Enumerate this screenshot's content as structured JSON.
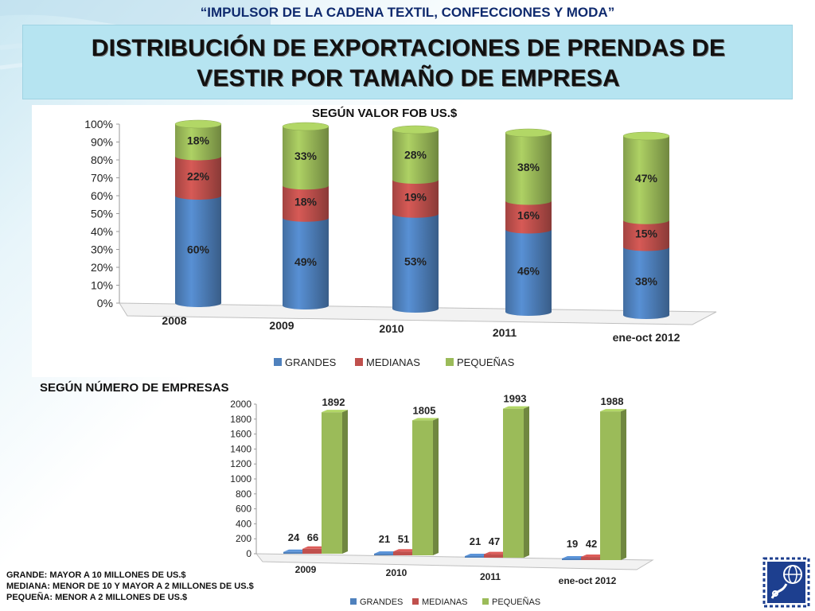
{
  "header": {
    "subtitle": "“IMPULSOR DE LA CADENA TEXTIL, CONFECCIONES Y MODA”",
    "title_line1": "DISTRIBUCIÓN DE EXPORTACIONES DE PRENDAS DE",
    "title_line2": "VESTIR POR TAMAÑO DE EMPRESA"
  },
  "colors": {
    "grandes": "#4f81bd",
    "medianas": "#c0504d",
    "pequenas": "#9bbb59"
  },
  "chart_data": [
    {
      "type": "bar",
      "stacked": true,
      "three_d": true,
      "title": "SEGÚN VALOR FOB US.$",
      "categories": [
        "2008",
        "2009",
        "2010",
        "2011",
        "ene-oct 2012"
      ],
      "series": [
        {
          "name": "GRANDES",
          "values": [
            60,
            49,
            53,
            46,
            38
          ],
          "labels": [
            "60%",
            "49%",
            "53%",
            "46%",
            "38%"
          ]
        },
        {
          "name": "MEDIANAS",
          "values": [
            22,
            18,
            19,
            16,
            15
          ],
          "labels": [
            "22%",
            "18%",
            "19%",
            "16%",
            "15%"
          ]
        },
        {
          "name": "PEQUEÑAS",
          "values": [
            18,
            33,
            28,
            38,
            47
          ],
          "labels": [
            "18%",
            "33%",
            "28%",
            "38%",
            "47%"
          ]
        }
      ],
      "yticks": [
        "0%",
        "10%",
        "20%",
        "30%",
        "40%",
        "50%",
        "60%",
        "70%",
        "80%",
        "90%",
        "100%"
      ],
      "ylim": [
        0,
        100
      ],
      "legend_position": "bottom"
    },
    {
      "type": "bar",
      "three_d": true,
      "title": "SEGÚN NÚMERO DE EMPRESAS",
      "categories": [
        "2009",
        "2010",
        "2011",
        "ene-oct 2012"
      ],
      "series": [
        {
          "name": "GRANDES",
          "values": [
            24,
            21,
            21,
            19
          ]
        },
        {
          "name": "MEDIANAS",
          "values": [
            66,
            51,
            47,
            42
          ]
        },
        {
          "name": "PEQUEÑAS",
          "values": [
            1892,
            1805,
            1993,
            1988
          ]
        }
      ],
      "yticks": [
        "0",
        "200",
        "400",
        "600",
        "800",
        "1000",
        "1200",
        "1400",
        "1600",
        "1800",
        "2000"
      ],
      "ylim": [
        0,
        2000
      ],
      "legend_position": "bottom"
    }
  ],
  "definitions": {
    "grande": "GRANDE: MAYOR A 10 MILLONES DE US.$",
    "mediana": "MEDIANA: MENOR DE 10 Y MAYOR A 2 MILLONES DE US.$",
    "pequena": "PEQUEÑA: MENOR A 2 MILLONES DE US.$"
  },
  "logo": {
    "icon": "globe-thread-logo-icon"
  }
}
